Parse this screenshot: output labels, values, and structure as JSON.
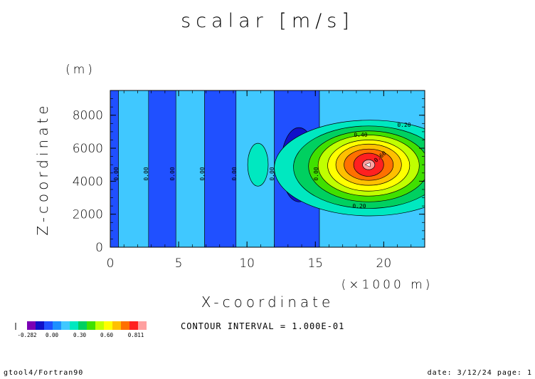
{
  "chart_data": {
    "type": "heatmap",
    "title": "scalar [m/s]",
    "xlabel": "X-coordinate",
    "x_unit": "(×1000 m)",
    "ylabel": "Z-coordinate",
    "y_unit": "(m)",
    "xlim": [
      0,
      23
    ],
    "ylim": [
      0,
      9500
    ],
    "x_ticks": [
      "0",
      "5",
      "10",
      "15",
      "20"
    ],
    "y_ticks": [
      "0",
      "2000",
      "4000",
      "6000",
      "8000"
    ],
    "contour_interval_text": "CONTOUR INTERVAL = 1.000E-01",
    "contour_labels": [
      "0.20",
      "0.40",
      "0.60",
      "0.20",
      "0.00",
      "0.00",
      "0.00",
      "0.00",
      "0.00",
      "0.00",
      "0.00"
    ],
    "colorbar": {
      "tick_labels": [
        "-0.282",
        "0.00",
        "0.30",
        "0.60",
        "0.811"
      ],
      "colors": [
        "#7b00b4",
        "#1010c8",
        "#2050ff",
        "#1e90ff",
        "#40c8ff",
        "#00e8c0",
        "#00d060",
        "#40e000",
        "#c0ff00",
        "#ffff00",
        "#ffc000",
        "#ff7000",
        "#ff2020",
        "#ffa0a0"
      ]
    },
    "bands": [
      {
        "x0": 0,
        "x1": 0.6,
        "fill": "#2050ff"
      },
      {
        "x0": 0.6,
        "x1": 2.8,
        "fill": "#40c8ff"
      },
      {
        "x0": 2.8,
        "x1": 4.8,
        "fill": "#2050ff"
      },
      {
        "x0": 4.8,
        "x1": 6.9,
        "fill": "#40c8ff"
      },
      {
        "x0": 6.9,
        "x1": 9.2,
        "fill": "#2050ff"
      },
      {
        "x0": 9.2,
        "x1": 12.0,
        "fill": "#40c8ff"
      },
      {
        "x0": 12.0,
        "x1": 15.3,
        "fill": "#2050ff"
      },
      {
        "x0": 15.3,
        "x1": 23,
        "fill": "#40c8ff"
      }
    ],
    "blobs": [
      {
        "cx": 10.8,
        "cy": 5000,
        "rx": 0.75,
        "ry": 1300,
        "fill": "#00e8c0"
      },
      {
        "cx": 13.8,
        "cy": 5000,
        "rx": 1.3,
        "ry": 2250,
        "fill": "#1010c8"
      },
      {
        "cx": 13.8,
        "cy": 5000,
        "rx": 0.75,
        "ry": 1300,
        "fill": "#7b00b4"
      },
      {
        "cx": 19.0,
        "cy": 4800,
        "rx": 7.0,
        "ry": 2900,
        "fill": "#00e8c0"
      },
      {
        "cx": 18.9,
        "cy": 4850,
        "rx": 5.5,
        "ry": 2500,
        "fill": "#00d060"
      },
      {
        "cx": 18.9,
        "cy": 4900,
        "rx": 4.4,
        "ry": 2150,
        "fill": "#40e000"
      },
      {
        "cx": 18.9,
        "cy": 4950,
        "rx": 3.7,
        "ry": 1850,
        "fill": "#c0ff00"
      },
      {
        "cx": 18.9,
        "cy": 4950,
        "rx": 3.0,
        "ry": 1550,
        "fill": "#ffff00"
      },
      {
        "cx": 18.9,
        "cy": 5000,
        "rx": 2.4,
        "ry": 1250,
        "fill": "#ffc000"
      },
      {
        "cx": 18.9,
        "cy": 5000,
        "rx": 1.8,
        "ry": 950,
        "fill": "#ff7000"
      },
      {
        "cx": 18.9,
        "cy": 5000,
        "rx": 1.1,
        "ry": 700,
        "fill": "#ff2020"
      },
      {
        "cx": 18.9,
        "cy": 5000,
        "rx": 0.45,
        "ry": 300,
        "fill": "#ffa0a0"
      }
    ],
    "grid": false
  },
  "footer": {
    "left": "gtool4/Fortran90",
    "right": "date: 3/12/24 page: 1"
  }
}
